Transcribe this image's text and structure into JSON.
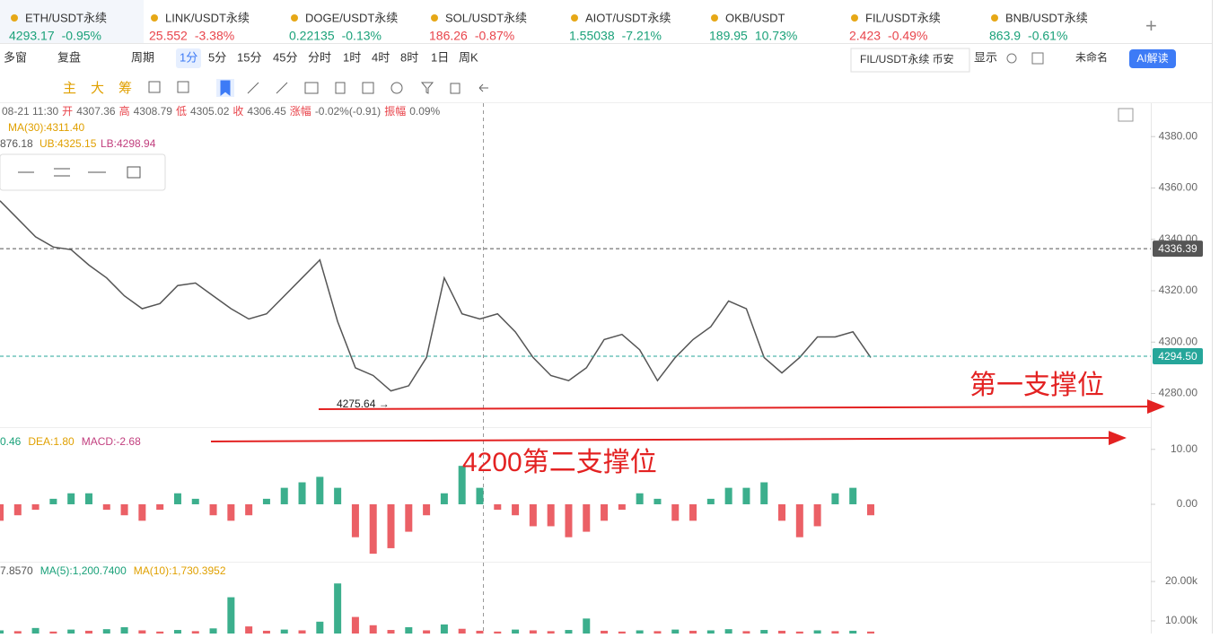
{
  "tabs": [
    {
      "name": "ETH/USDT永续",
      "price": "4293.17",
      "change": "-0.95%",
      "color": "#1aa179"
    },
    {
      "name": "LINK/USDT永续",
      "price": "25.552",
      "change": "-3.38%",
      "color": "#e8444b"
    },
    {
      "name": "DOGE/USDT永续",
      "price": "0.22135",
      "change": "-0.13%",
      "color": "#1aa179"
    },
    {
      "name": "SOL/USDT永续",
      "price": "186.26",
      "change": "-0.87%",
      "color": "#e8444b"
    },
    {
      "name": "AIOT/USDT永续",
      "price": "1.55038",
      "change": "-7.21%",
      "color": "#1aa179"
    },
    {
      "name": "OKB/USDT",
      "price": "189.95",
      "change": "10.73%",
      "color": "#1aa179"
    },
    {
      "name": "FIL/USDT永续",
      "price": "2.423",
      "change": "-0.49%",
      "color": "#e8444b"
    },
    {
      "name": "BNB/USDT永续",
      "price": "863.9",
      "change": "-0.61%",
      "color": "#1aa179"
    }
  ],
  "toolbar": {
    "multi": "多窗",
    "replay": "复盘",
    "period": "周期",
    "periods": [
      "1分",
      "5分",
      "15分",
      "45分",
      "分时",
      "1时",
      "4时",
      "8时",
      "1日",
      "周K"
    ],
    "tooltip": "FIL/USDT永续 币安",
    "display": "显示",
    "unnamed": "未命名",
    "ai": "AI解读"
  },
  "tools": [
    "主",
    "大",
    "筹"
  ],
  "info": [
    "08-21 11:30",
    "开",
    "4307.36",
    "高",
    "4308.79",
    "低",
    "4305.02",
    "收",
    "4306.45",
    "涨幅",
    "-0.02%(-0.91)",
    "振幅",
    "0.09%"
  ],
  "ma_line": {
    "ma30": "MA(30):4311.40",
    "cut": "876.18",
    "ub": "UB:4325.15",
    "lb": "LB:4298.94"
  },
  "low_label": "4275.64 →",
  "annotations": [
    "第一支撑位",
    "4200第二支撑位"
  ],
  "macd_line": [
    "0.46",
    "DEA:1.80",
    "MACD:-2.68"
  ],
  "vol_line": [
    "7.8570",
    "MA(5):1,200.7400",
    "MA(10):1,730.3952"
  ],
  "chart_data": [
    {
      "type": "line",
      "color": "#555555",
      "ylim": [
        4269,
        4393
      ],
      "yticks": [
        {
          "value": 4380,
          "label": "4380.00"
        },
        {
          "value": 4360,
          "label": "4360.00"
        },
        {
          "value": 4340,
          "label": "4340.00"
        },
        {
          "value": 4320,
          "label": "4320.00"
        },
        {
          "value": 4300,
          "label": "4300.00"
        },
        {
          "value": 4280,
          "label": "4280.00"
        }
      ],
      "markers": [
        4336.39,
        {
          "value": 4294.5,
          "label": "4294.50"
        }
      ],
      "values": [
        4355,
        4348,
        4341,
        4337,
        4336,
        4330,
        4325,
        4318,
        4313,
        4315,
        4322,
        4323,
        4318,
        4313,
        4309,
        4311,
        4318,
        4325,
        4332,
        4308,
        4290,
        4287,
        4281,
        4283,
        4294,
        4325,
        4311,
        4309,
        4311,
        4304,
        4294,
        4287,
        4285,
        4290,
        4301,
        4303,
        4297,
        4285,
        4294,
        4301,
        4306,
        4316,
        4313,
        4294,
        4288,
        4294,
        4302,
        4302,
        4304,
        4294
      ]
    },
    {
      "type": "bar",
      "ylim": [
        -10.3,
        13.4
      ],
      "yticks": [
        {
          "value": 10,
          "label": "10.00"
        },
        {
          "value": 0,
          "label": "0.00"
        }
      ],
      "colors": [
        "#e8444b",
        "#1aa179"
      ],
      "values": [
        -3,
        -2,
        -1,
        1,
        2,
        2,
        -1,
        -2,
        -3,
        -1,
        2,
        1,
        -2,
        -3,
        -2,
        1,
        3,
        4,
        5,
        3,
        -6,
        -9,
        -8,
        -5,
        -2,
        2,
        7,
        3,
        -1,
        -2,
        -4,
        -4,
        -6,
        -5,
        -3,
        -1,
        2,
        1,
        -3,
        -3,
        1,
        3,
        3,
        4,
        -3,
        -6,
        -4,
        2,
        3,
        -2
      ]
    },
    {
      "type": "bar",
      "ylim": [
        6800,
        24100
      ],
      "yticks": [
        {
          "value": 20000,
          "label": "20.00k"
        },
        {
          "value": 10000,
          "label": "10.00k"
        }
      ],
      "colors": [
        "#e8444b",
        "#1aa179"
      ],
      "values": [
        7600,
        7400,
        8200,
        7300,
        7800,
        7500,
        7900,
        8400,
        7600,
        7300,
        7700,
        7400,
        8100,
        16000,
        8600,
        7500,
        7800,
        7600,
        9800,
        19500,
        11000,
        8900,
        7700,
        8400,
        7600,
        9100,
        8000,
        7500,
        7300,
        7800,
        7600,
        7400,
        7700,
        10600,
        7500,
        7300,
        7600,
        7400,
        7800,
        7500,
        7600,
        7900,
        7400,
        7700,
        7500,
        7300,
        7600,
        7400,
        7500,
        7300
      ]
    }
  ]
}
